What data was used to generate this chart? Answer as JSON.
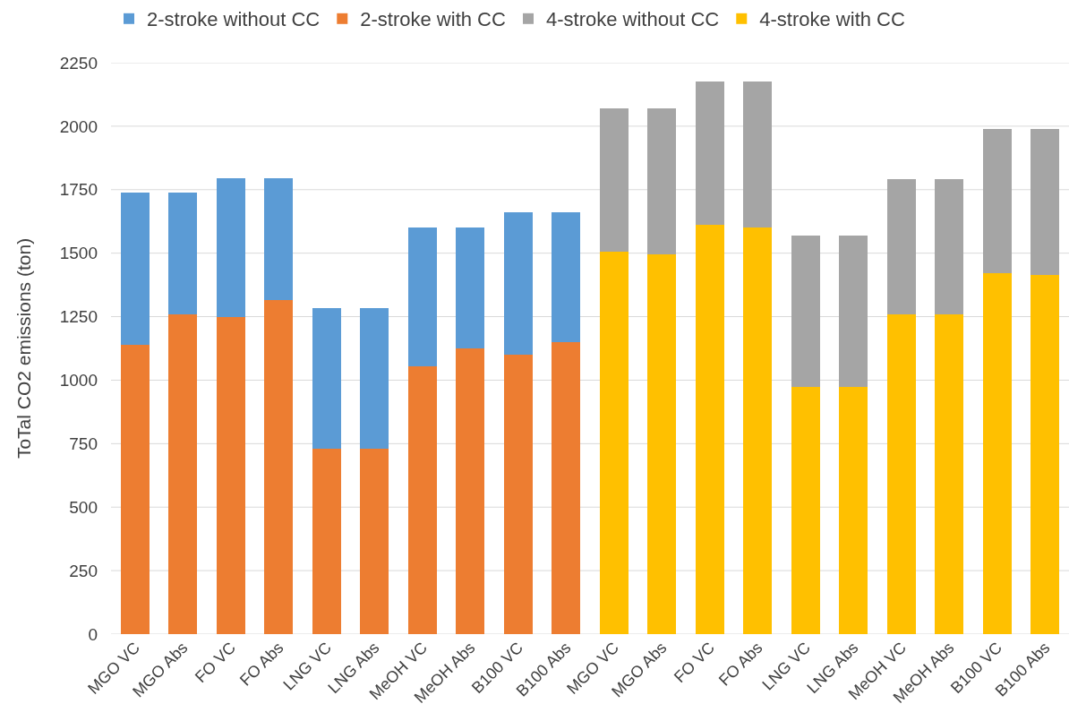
{
  "chart_data": {
    "type": "bar",
    "stacked": true,
    "ylabel": "ToTal CO2 emissions (ton)",
    "categories": [
      "MGO VC",
      "MGO Abs",
      "FO VC",
      "FO Abs",
      "LNG VC",
      "LNG Abs",
      "MeOH VC",
      "MeOH Abs",
      "B100 VC",
      "B100 Abs",
      "MGO VC",
      "MGO Abs",
      "FO VC",
      "FO Abs",
      "LNG VC",
      "LNG Abs",
      "MeOH VC",
      "MeOH Abs",
      "B100 VC",
      "B100 Abs"
    ],
    "series": [
      {
        "name": "2-stroke with CC",
        "color": "#ed7d31",
        "values": [
          1140,
          1260,
          1250,
          1315,
          730,
          730,
          1055,
          1125,
          1100,
          1150,
          null,
          null,
          null,
          null,
          null,
          null,
          null,
          null,
          null,
          null
        ]
      },
      {
        "name": "2-stroke without CC",
        "color": "#5b9bd5",
        "values": [
          600,
          480,
          545,
          480,
          555,
          555,
          545,
          475,
          560,
          510,
          null,
          null,
          null,
          null,
          null,
          null,
          null,
          null,
          null,
          null
        ]
      },
      {
        "name": "4-stroke with CC",
        "color": "#ffc000",
        "values": [
          null,
          null,
          null,
          null,
          null,
          null,
          null,
          null,
          null,
          null,
          1505,
          1495,
          1610,
          1600,
          975,
          975,
          1260,
          1260,
          1420,
          1415
        ]
      },
      {
        "name": "4-stroke without CC",
        "color": "#a5a5a5",
        "values": [
          null,
          null,
          null,
          null,
          null,
          null,
          null,
          null,
          null,
          null,
          565,
          575,
          565,
          575,
          595,
          595,
          530,
          530,
          570,
          575
        ]
      }
    ],
    "ylim": [
      0,
      2250
    ],
    "yticks": [
      0,
      250,
      500,
      750,
      1000,
      1250,
      1500,
      1750,
      2000,
      2250
    ],
    "grid": "y",
    "legend": "top"
  }
}
